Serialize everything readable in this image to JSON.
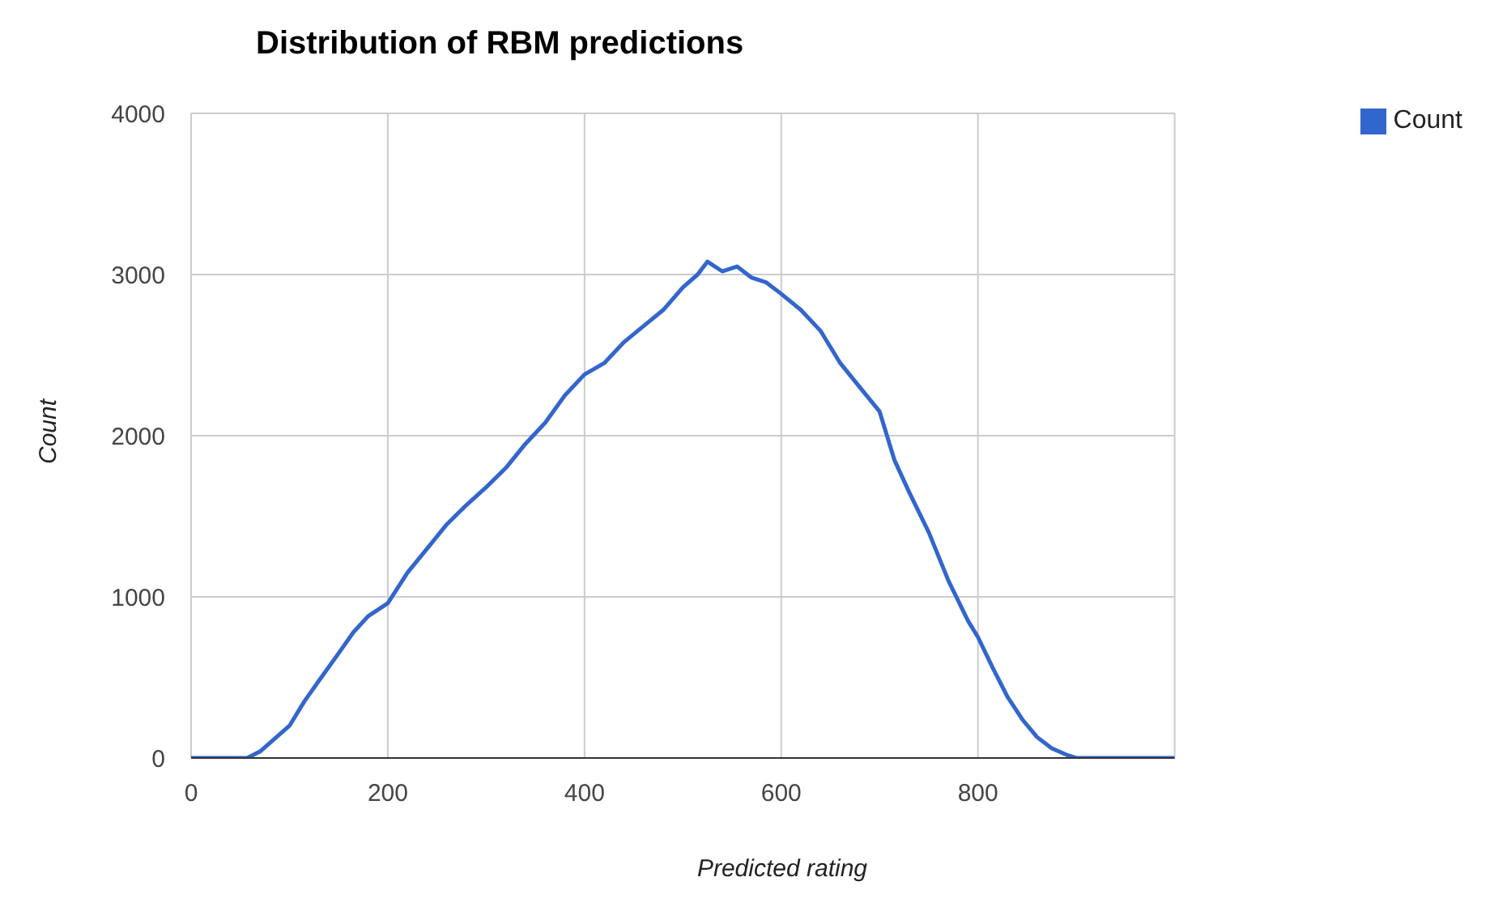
{
  "chart_data": {
    "type": "line",
    "title": "Distribution of RBM predictions",
    "xlabel": "Predicted rating",
    "ylabel": "Count",
    "x": [
      0,
      30,
      57,
      70,
      85,
      100,
      115,
      130,
      150,
      165,
      180,
      200,
      220,
      240,
      260,
      280,
      300,
      320,
      340,
      360,
      380,
      400,
      420,
      440,
      460,
      480,
      500,
      515,
      525,
      540,
      555,
      570,
      585,
      600,
      620,
      640,
      660,
      680,
      700,
      715,
      730,
      750,
      770,
      790,
      800,
      815,
      830,
      845,
      860,
      875,
      890,
      900,
      950,
      1000
    ],
    "series": [
      {
        "name": "Count",
        "color": "#3366cc",
        "values": [
          0,
          0,
          0,
          40,
          120,
          200,
          350,
          480,
          650,
          780,
          880,
          960,
          1150,
          1300,
          1450,
          1570,
          1680,
          1800,
          1950,
          2080,
          2250,
          2380,
          2450,
          2580,
          2680,
          2780,
          2920,
          3000,
          3080,
          3020,
          3050,
          2980,
          2950,
          2880,
          2780,
          2650,
          2450,
          2300,
          2150,
          1850,
          1650,
          1400,
          1100,
          850,
          750,
          560,
          380,
          240,
          130,
          60,
          20,
          0,
          0,
          0
        ]
      }
    ],
    "xlim": [
      0,
      1000
    ],
    "xticks": [
      0,
      200,
      400,
      600,
      800
    ],
    "ylim": [
      0,
      4000
    ],
    "yticks": [
      0,
      1000,
      2000,
      3000,
      4000
    ],
    "grid": true,
    "legend": "top right",
    "marker": "none",
    "line_style": "solid"
  }
}
